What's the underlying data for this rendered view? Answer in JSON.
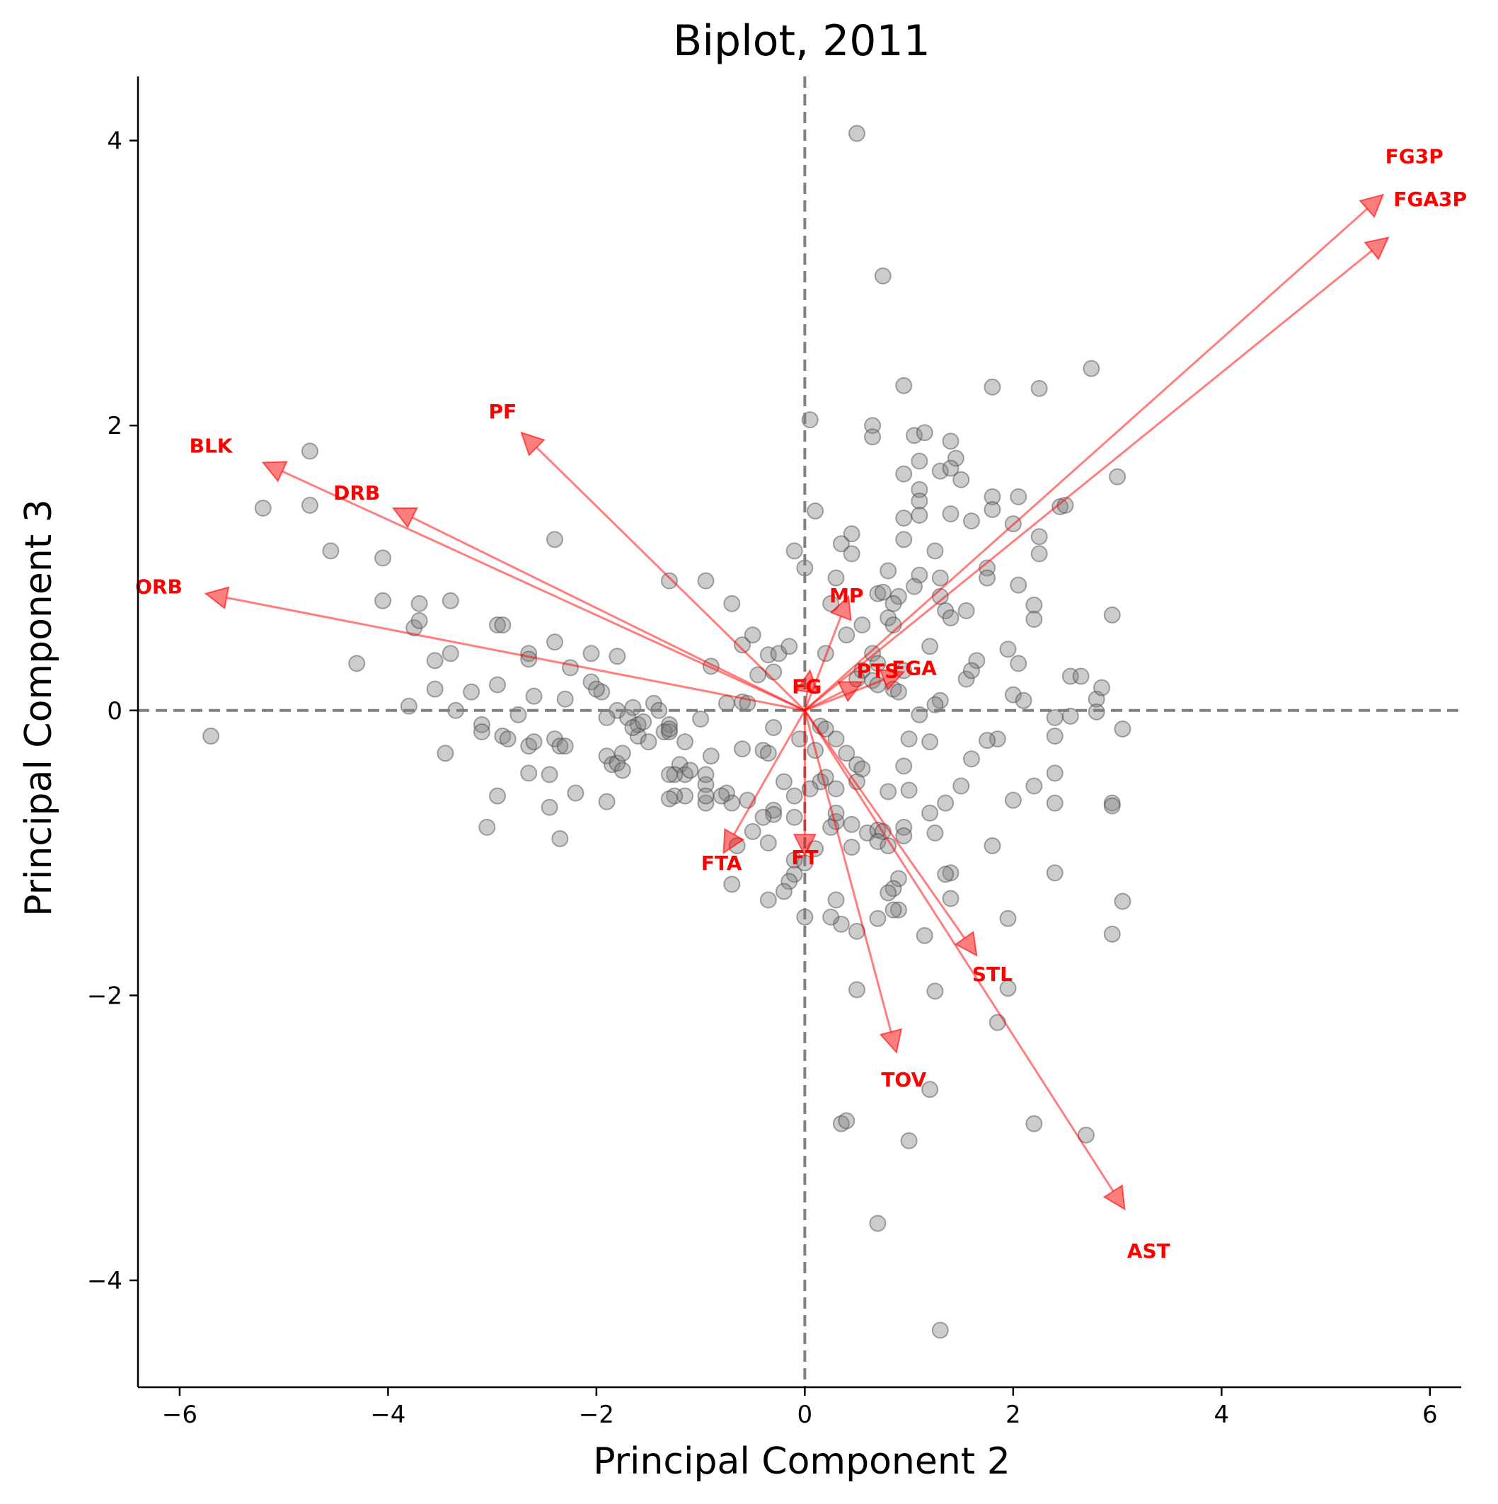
{
  "chart_data": {
    "type": "scatter",
    "title": "Biplot, 2011",
    "xlabel": "Principal Component 2",
    "ylabel": "Principal Component 3",
    "xlim": [
      -6.4,
      6.3
    ],
    "ylim": [
      -4.75,
      4.45
    ],
    "xticks": [
      -6,
      -4,
      -2,
      0,
      2,
      4,
      6
    ],
    "yticks": [
      -4,
      -2,
      0,
      2,
      4
    ],
    "xtick_labels": [
      "−6",
      "−4",
      "−2",
      "0",
      "2",
      "4",
      "6"
    ],
    "ytick_labels": [
      "−4",
      "−2",
      "0",
      "2",
      "4"
    ],
    "reference_lines": {
      "x": 0,
      "y": 0,
      "style": "dashed",
      "color": "#808080"
    },
    "colors": {
      "points": "#808080",
      "points_edge": "#404040",
      "vectors": "#ff0000",
      "labels": "#ff0000"
    },
    "points": [
      [
        0.5,
        4.05
      ],
      [
        0.75,
        3.05
      ],
      [
        2.75,
        2.4
      ],
      [
        0.95,
        2.28
      ],
      [
        1.8,
        2.27
      ],
      [
        2.25,
        2.26
      ],
      [
        0.05,
        2.04
      ],
      [
        0.65,
        2.0
      ],
      [
        0.65,
        1.92
      ],
      [
        1.05,
        1.93
      ],
      [
        1.15,
        1.95
      ],
      [
        1.4,
        1.89
      ],
      [
        1.45,
        1.77
      ],
      [
        1.1,
        1.75
      ],
      [
        1.3,
        1.68
      ],
      [
        1.4,
        1.7
      ],
      [
        1.5,
        1.62
      ],
      [
        0.95,
        1.66
      ],
      [
        3.0,
        1.64
      ],
      [
        1.1,
        1.55
      ],
      [
        1.8,
        1.5
      ],
      [
        2.05,
        1.5
      ],
      [
        1.1,
        1.47
      ],
      [
        1.8,
        1.41
      ],
      [
        2.45,
        1.43
      ],
      [
        2.5,
        1.44
      ],
      [
        0.1,
        1.4
      ],
      [
        1.4,
        1.38
      ],
      [
        1.1,
        1.37
      ],
      [
        0.95,
        1.35
      ],
      [
        1.6,
        1.33
      ],
      [
        2.0,
        1.31
      ],
      [
        0.45,
        1.24
      ],
      [
        0.35,
        1.17
      ],
      [
        0.45,
        1.1
      ],
      [
        0.95,
        1.2
      ],
      [
        1.25,
        1.12
      ],
      [
        2.25,
        1.22
      ],
      [
        2.25,
        1.1
      ],
      [
        -0.1,
        1.12
      ],
      [
        0.0,
        1.0
      ],
      [
        0.8,
        0.98
      ],
      [
        1.1,
        0.95
      ],
      [
        1.3,
        0.93
      ],
      [
        1.75,
        1.0
      ],
      [
        1.75,
        0.93
      ],
      [
        0.3,
        0.93
      ],
      [
        -1.3,
        0.91
      ],
      [
        -0.95,
        0.91
      ],
      [
        1.05,
        0.87
      ],
      [
        2.05,
        0.88
      ],
      [
        0.7,
        0.82
      ],
      [
        0.75,
        0.83
      ],
      [
        0.9,
        0.8
      ],
      [
        1.3,
        0.8
      ],
      [
        0.25,
        0.75
      ],
      [
        0.85,
        0.75
      ],
      [
        1.35,
        0.7
      ],
      [
        1.55,
        0.7
      ],
      [
        2.2,
        0.74
      ],
      [
        -0.7,
        0.75
      ],
      [
        2.95,
        0.67
      ],
      [
        0.8,
        0.65
      ],
      [
        0.85,
        0.6
      ],
      [
        1.4,
        0.65
      ],
      [
        2.2,
        0.64
      ],
      [
        0.55,
        0.6
      ],
      [
        0.4,
        0.53
      ],
      [
        -0.5,
        0.53
      ],
      [
        -0.6,
        0.46
      ],
      [
        1.2,
        0.45
      ],
      [
        1.95,
        0.43
      ],
      [
        0.65,
        0.4
      ],
      [
        0.7,
        0.33
      ],
      [
        1.65,
        0.35
      ],
      [
        2.05,
        0.33
      ],
      [
        -0.9,
        0.31
      ],
      [
        0.55,
        0.28
      ],
      [
        0.95,
        0.28
      ],
      [
        1.55,
        0.22
      ],
      [
        1.6,
        0.28
      ],
      [
        2.55,
        0.24
      ],
      [
        2.65,
        0.24
      ],
      [
        0.5,
        0.22
      ],
      [
        0.65,
        0.21
      ],
      [
        0.7,
        0.18
      ],
      [
        0.85,
        0.15
      ],
      [
        0.9,
        0.13
      ],
      [
        -0.45,
        0.25
      ],
      [
        -0.3,
        0.27
      ],
      [
        -0.35,
        0.39
      ],
      [
        0.2,
        0.4
      ],
      [
        -0.25,
        0.4
      ],
      [
        -0.15,
        0.45
      ],
      [
        2.0,
        0.11
      ],
      [
        1.3,
        0.07
      ],
      [
        1.25,
        0.04
      ],
      [
        2.1,
        0.07
      ],
      [
        2.8,
        0.08
      ],
      [
        2.85,
        0.16
      ],
      [
        2.4,
        -0.05
      ],
      [
        2.55,
        -0.04
      ],
      [
        2.8,
        -0.01
      ],
      [
        1.1,
        -0.03
      ],
      [
        -0.6,
        0.06
      ],
      [
        -0.55,
        0.05
      ],
      [
        -0.75,
        0.05
      ],
      [
        -1.0,
        -0.06
      ],
      [
        -1.3,
        -0.1
      ],
      [
        -1.35,
        -0.15
      ],
      [
        -1.15,
        -0.22
      ],
      [
        -0.3,
        -0.12
      ],
      [
        0.15,
        -0.11
      ],
      [
        0.2,
        -0.13
      ],
      [
        -0.05,
        -0.2
      ],
      [
        0.3,
        -0.2
      ],
      [
        -0.6,
        -0.27
      ],
      [
        -0.4,
        -0.28
      ],
      [
        -0.35,
        -0.3
      ],
      [
        0.1,
        -0.28
      ],
      [
        0.4,
        -0.3
      ],
      [
        0.5,
        -0.38
      ],
      [
        0.55,
        -0.41
      ],
      [
        1.0,
        -0.2
      ],
      [
        1.2,
        -0.22
      ],
      [
        1.85,
        -0.2
      ],
      [
        1.75,
        -0.21
      ],
      [
        2.4,
        -0.18
      ],
      [
        3.05,
        -0.13
      ],
      [
        0.95,
        -0.39
      ],
      [
        1.0,
        -0.56
      ],
      [
        1.6,
        -0.34
      ],
      [
        1.5,
        -0.53
      ],
      [
        2.4,
        -0.44
      ],
      [
        2.2,
        -0.53
      ],
      [
        2.0,
        -0.63
      ],
      [
        2.4,
        -0.65
      ],
      [
        2.95,
        -0.65
      ],
      [
        2.95,
        -0.67
      ],
      [
        1.35,
        -0.65
      ],
      [
        1.2,
        -0.72
      ],
      [
        0.8,
        -0.57
      ],
      [
        0.5,
        -0.5
      ],
      [
        0.3,
        -0.55
      ],
      [
        0.15,
        -0.5
      ],
      [
        0.05,
        -0.55
      ],
      [
        -0.1,
        -0.6
      ],
      [
        0.2,
        -0.47
      ],
      [
        -0.2,
        -0.5
      ],
      [
        -0.3,
        -0.7
      ],
      [
        -0.3,
        -0.73
      ],
      [
        -0.55,
        -0.63
      ],
      [
        -0.95,
        -0.52
      ],
      [
        -0.95,
        -0.45
      ],
      [
        -0.75,
        -0.58
      ],
      [
        -0.7,
        -0.65
      ],
      [
        -0.1,
        -0.75
      ],
      [
        0.3,
        -0.78
      ],
      [
        0.45,
        -0.8
      ],
      [
        0.6,
        -0.86
      ],
      [
        0.7,
        -0.84
      ],
      [
        0.75,
        -0.85
      ],
      [
        0.95,
        -0.82
      ],
      [
        0.95,
        -0.88
      ],
      [
        1.25,
        -0.86
      ],
      [
        0.7,
        -0.92
      ],
      [
        0.8,
        -0.95
      ],
      [
        0.45,
        -0.96
      ],
      [
        0.25,
        -0.82
      ],
      [
        1.8,
        -0.95
      ],
      [
        -0.35,
        -0.93
      ],
      [
        -0.65,
        -0.95
      ],
      [
        0.3,
        -0.72
      ],
      [
        -0.5,
        -0.85
      ],
      [
        -0.4,
        -0.75
      ],
      [
        -0.1,
        -1.05
      ],
      [
        -0.1,
        -1.15
      ],
      [
        0.0,
        -1.07
      ],
      [
        0.1,
        -0.97
      ],
      [
        0.9,
        -1.18
      ],
      [
        0.85,
        -1.25
      ],
      [
        0.8,
        -1.28
      ],
      [
        1.4,
        -1.14
      ],
      [
        1.35,
        -1.15
      ],
      [
        1.4,
        -1.32
      ],
      [
        0.9,
        -1.4
      ],
      [
        0.85,
        -1.4
      ],
      [
        -0.15,
        -1.2
      ],
      [
        -0.2,
        -1.27
      ],
      [
        -0.35,
        -1.33
      ],
      [
        0.3,
        -1.33
      ],
      [
        0.7,
        -1.46
      ],
      [
        0.35,
        -1.5
      ],
      [
        0.5,
        -1.55
      ],
      [
        0.0,
        -1.45
      ],
      [
        0.25,
        -1.45
      ],
      [
        1.95,
        -1.46
      ],
      [
        1.15,
        -1.58
      ],
      [
        2.95,
        -1.57
      ],
      [
        3.05,
        -1.34
      ],
      [
        2.4,
        -1.14
      ],
      [
        -0.7,
        -1.22
      ],
      [
        1.95,
        -1.95
      ],
      [
        1.85,
        -2.19
      ],
      [
        1.25,
        -1.97
      ],
      [
        0.5,
        -1.96
      ],
      [
        1.2,
        -2.66
      ],
      [
        0.35,
        -2.9
      ],
      [
        0.4,
        -2.88
      ],
      [
        1.0,
        -3.02
      ],
      [
        2.2,
        -2.9
      ],
      [
        2.7,
        -2.98
      ],
      [
        0.7,
        -3.6
      ],
      [
        1.3,
        -4.35
      ],
      [
        -4.75,
        1.82
      ],
      [
        -5.2,
        1.42
      ],
      [
        -4.75,
        1.44
      ],
      [
        -4.55,
        1.12
      ],
      [
        -4.05,
        1.07
      ],
      [
        -4.05,
        0.77
      ],
      [
        -3.7,
        0.75
      ],
      [
        -3.4,
        0.77
      ],
      [
        -3.75,
        0.58
      ],
      [
        -3.7,
        0.63
      ],
      [
        -3.55,
        0.35
      ],
      [
        -3.4,
        0.4
      ],
      [
        -4.3,
        0.33
      ],
      [
        -2.4,
        1.2
      ],
      [
        -2.95,
        0.6
      ],
      [
        -2.9,
        0.6
      ],
      [
        -2.65,
        0.4
      ],
      [
        -2.65,
        0.36
      ],
      [
        -2.4,
        0.48
      ],
      [
        -2.25,
        0.3
      ],
      [
        -2.05,
        0.2
      ],
      [
        -1.95,
        0.13
      ],
      [
        -2.05,
        0.4
      ],
      [
        -1.8,
        0.38
      ],
      [
        -3.8,
        0.03
      ],
      [
        -3.55,
        0.15
      ],
      [
        -3.35,
        0.0
      ],
      [
        -3.2,
        0.13
      ],
      [
        -2.95,
        0.18
      ],
      [
        -2.6,
        0.1
      ],
      [
        -2.3,
        0.08
      ],
      [
        -2.0,
        0.15
      ],
      [
        -1.8,
        0.0
      ],
      [
        -1.65,
        0.02
      ],
      [
        -1.45,
        0.05
      ],
      [
        -1.4,
        0.0
      ],
      [
        -1.7,
        -0.05
      ],
      [
        -1.9,
        -0.05
      ],
      [
        -2.75,
        -0.03
      ],
      [
        -3.1,
        -0.1
      ],
      [
        -3.1,
        -0.15
      ],
      [
        -2.9,
        -0.18
      ],
      [
        -2.85,
        -0.2
      ],
      [
        -2.65,
        -0.25
      ],
      [
        -2.6,
        -0.22
      ],
      [
        -2.4,
        -0.2
      ],
      [
        -2.35,
        -0.25
      ],
      [
        -2.3,
        -0.25
      ],
      [
        -1.9,
        -0.32
      ],
      [
        -1.85,
        -0.38
      ],
      [
        -1.8,
        -0.37
      ],
      [
        -1.75,
        -0.42
      ],
      [
        -1.75,
        -0.3
      ],
      [
        -1.6,
        -0.18
      ],
      [
        -1.5,
        -0.22
      ],
      [
        -1.3,
        -0.15
      ],
      [
        -1.3,
        -0.13
      ],
      [
        -1.2,
        -0.38
      ],
      [
        -1.15,
        -0.45
      ],
      [
        -1.25,
        -0.45
      ],
      [
        -1.15,
        -0.6
      ],
      [
        -0.95,
        -0.65
      ],
      [
        -0.9,
        -0.32
      ],
      [
        -0.8,
        -0.6
      ],
      [
        -1.25,
        -0.6
      ],
      [
        -1.9,
        -0.64
      ],
      [
        -2.2,
        -0.58
      ],
      [
        -2.35,
        -0.9
      ],
      [
        -2.45,
        -0.68
      ],
      [
        -2.45,
        -0.45
      ],
      [
        -2.65,
        -0.44
      ],
      [
        -3.45,
        -0.3
      ],
      [
        -2.95,
        -0.6
      ],
      [
        -3.05,
        -0.82
      ],
      [
        -5.7,
        -0.18
      ],
      [
        -1.3,
        -0.45
      ],
      [
        -1.3,
        -0.62
      ],
      [
        -1.6,
        -0.1
      ],
      [
        -1.65,
        -0.12
      ],
      [
        -1.55,
        -0.08
      ],
      [
        -1.1,
        -0.42
      ],
      [
        -0.95,
        -0.6
      ]
    ],
    "vectors": [
      {
        "label": "FG3P",
        "x": 5.55,
        "y": 3.62,
        "label_x": 5.85,
        "label_y": 3.88,
        "label_anchor": "middle"
      },
      {
        "label": "FGA3P",
        "x": 5.6,
        "y": 3.32,
        "label_x": 5.65,
        "label_y": 3.58,
        "label_anchor": "start"
      },
      {
        "label": "PF",
        "x": -2.72,
        "y": 1.95,
        "label_x": -2.9,
        "label_y": 2.09,
        "label_anchor": "middle"
      },
      {
        "label": "BLK",
        "x": -5.2,
        "y": 1.74,
        "label_x": -5.7,
        "label_y": 1.85,
        "label_anchor": "middle"
      },
      {
        "label": "DRB",
        "x": -3.95,
        "y": 1.42,
        "label_x": -4.3,
        "label_y": 1.52,
        "label_anchor": "middle"
      },
      {
        "label": "ORB",
        "x": -5.75,
        "y": 0.82,
        "label_x": -6.2,
        "label_y": 0.86,
        "label_anchor": "middle"
      },
      {
        "label": "MP",
        "x": 0.42,
        "y": 0.8,
        "label_x": 0.4,
        "label_y": 0.8,
        "label_anchor": "middle"
      },
      {
        "label": "PTS",
        "x": 0.55,
        "y": 0.2,
        "label_x": 0.7,
        "label_y": 0.27,
        "label_anchor": "middle"
      },
      {
        "label": "FGA",
        "x": 0.95,
        "y": 0.27,
        "label_x": 1.05,
        "label_y": 0.29,
        "label_anchor": "middle"
      },
      {
        "label": "FG",
        "x": 0.05,
        "y": 0.28,
        "label_x": 0.02,
        "label_y": 0.16,
        "label_anchor": "middle"
      },
      {
        "label": "FTA",
        "x": -0.78,
        "y": -1.0,
        "label_x": -0.8,
        "label_y": -1.08,
        "label_anchor": "middle"
      },
      {
        "label": "FT",
        "x": 0.0,
        "y": -1.02,
        "label_x": 0.0,
        "label_y": -1.04,
        "label_anchor": "middle"
      },
      {
        "label": "STL",
        "x": 1.65,
        "y": -1.72,
        "label_x": 1.8,
        "label_y": -1.86,
        "label_anchor": "middle"
      },
      {
        "label": "TOV",
        "x": 0.88,
        "y": -2.4,
        "label_x": 0.95,
        "label_y": -2.6,
        "label_anchor": "middle"
      },
      {
        "label": "AST",
        "x": 3.07,
        "y": -3.5,
        "label_x": 3.3,
        "label_y": -3.8,
        "label_anchor": "middle"
      }
    ]
  }
}
